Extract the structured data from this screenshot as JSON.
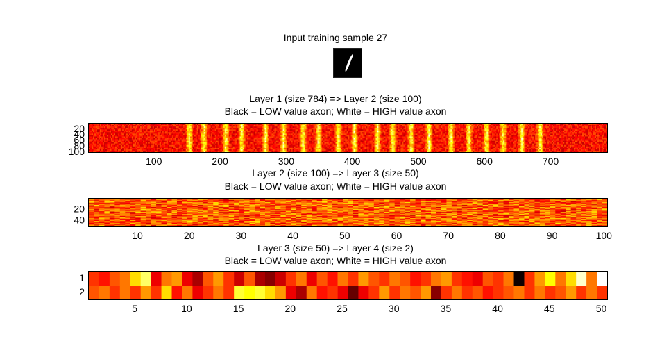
{
  "input": {
    "title": "Input training sample 27"
  },
  "colormap": "hot",
  "chart_data": [
    {
      "type": "heatmap",
      "title_line1": "Layer 1 (size 784) => Layer 2 (size 100)",
      "title_line2": "Black = LOW value axon; White = HIGH value axon",
      "xlim": [
        1,
        784
      ],
      "ylim": [
        1,
        100
      ],
      "xticks": [
        100,
        200,
        300,
        400,
        500,
        600,
        700
      ],
      "yticks": [
        20,
        40,
        60,
        80,
        100
      ],
      "bright_columns": [
        153,
        175,
        208,
        232,
        268,
        295,
        325,
        348,
        378,
        402,
        437,
        460,
        488,
        515,
        548,
        575,
        602,
        627,
        655,
        683
      ]
    },
    {
      "type": "heatmap",
      "title_line1": "Layer 2 (size 100) => Layer 3 (size 50)",
      "title_line2": "Black = LOW value axon; White = HIGH value axon",
      "xlim": [
        1,
        100
      ],
      "ylim": [
        1,
        50
      ],
      "xticks": [
        10,
        20,
        30,
        40,
        50,
        60,
        70,
        80,
        90,
        100
      ],
      "yticks": [
        20,
        40
      ]
    },
    {
      "type": "heatmap",
      "title_line1": "Layer 3 (size 50) => Layer 4 (size 2)",
      "title_line2": "Black = LOW value axon; White = HIGH value axon",
      "xlim": [
        1,
        50
      ],
      "ylim": [
        1,
        2
      ],
      "xticks": [
        5,
        10,
        15,
        20,
        25,
        30,
        35,
        40,
        45,
        50
      ],
      "yticks": [
        1,
        2
      ],
      "rows": [
        [
          0.45,
          0.4,
          0.5,
          0.55,
          0.7,
          0.85,
          0.35,
          0.55,
          0.6,
          0.35,
          0.25,
          0.5,
          0.6,
          0.45,
          0.3,
          0.5,
          0.25,
          0.2,
          0.3,
          0.45,
          0.55,
          0.35,
          0.5,
          0.4,
          0.55,
          0.45,
          0.6,
          0.5,
          0.45,
          0.55,
          0.5,
          0.4,
          0.45,
          0.55,
          0.6,
          0.45,
          0.4,
          0.35,
          0.5,
          0.45,
          0.55,
          0.02,
          0.45,
          0.6,
          0.75,
          0.55,
          0.7,
          0.95,
          0.55,
          1.0
        ],
        [
          0.5,
          0.55,
          0.45,
          0.55,
          0.45,
          0.6,
          0.45,
          0.7,
          0.4,
          0.55,
          0.35,
          0.45,
          0.55,
          0.45,
          0.8,
          0.75,
          0.8,
          0.7,
          0.6,
          0.35,
          0.25,
          0.55,
          0.4,
          0.45,
          0.35,
          0.15,
          0.35,
          0.45,
          0.6,
          0.45,
          0.55,
          0.5,
          0.6,
          0.2,
          0.45,
          0.55,
          0.45,
          0.5,
          0.4,
          0.45,
          0.5,
          0.55,
          0.45,
          0.55,
          0.45,
          0.5,
          0.6,
          0.45,
          0.55,
          0.45
        ]
      ]
    }
  ]
}
